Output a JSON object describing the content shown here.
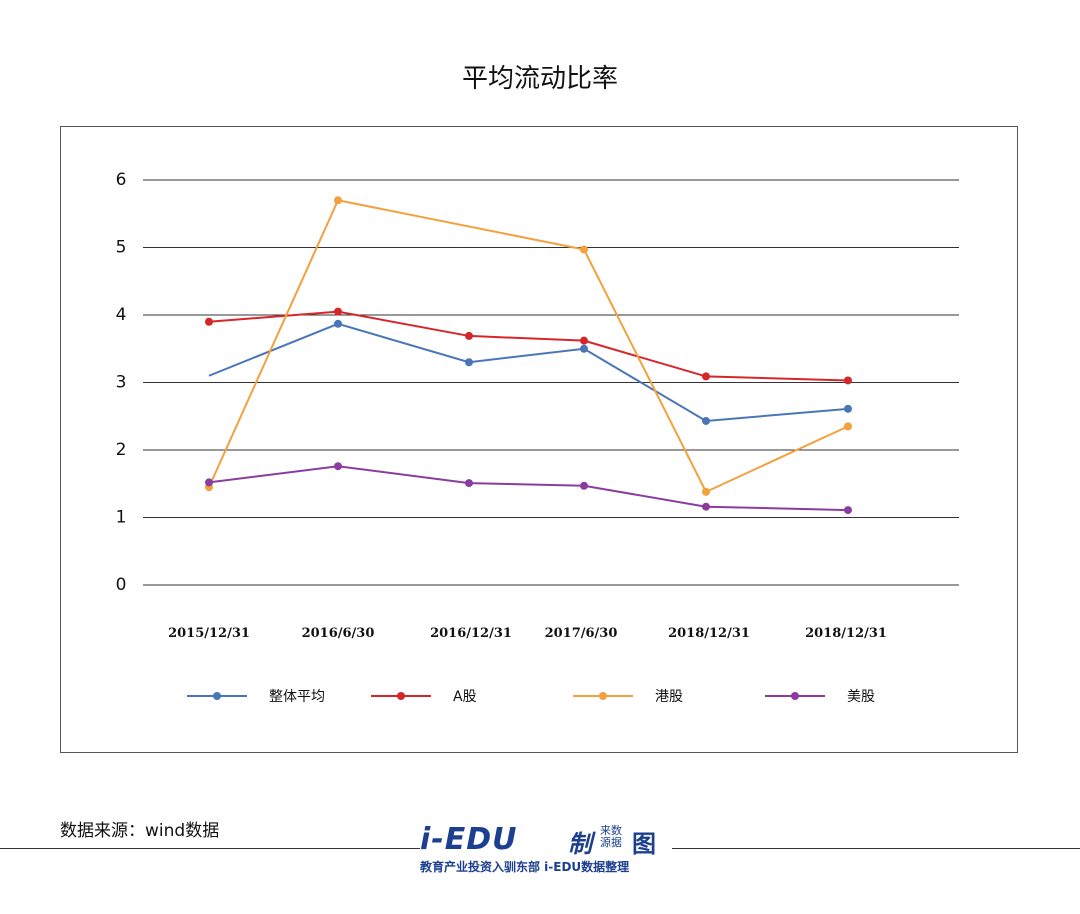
{
  "chart_data": {
    "type": "line",
    "title": "平均流动比率",
    "categories": [
      "2015/12/31",
      "2016/6/30",
      "2016/12/31",
      "2017/6/30",
      "2018/12/31",
      "2018/12/31"
    ],
    "ylim": [
      0,
      6
    ],
    "yticks": [
      "0",
      "1",
      "2",
      "3",
      "4",
      "5",
      "6"
    ],
    "grid": true,
    "legend_position": "bottom",
    "series": [
      {
        "name": "整体平均",
        "color": "#4a76b8",
        "values": [
          3.1,
          3.87,
          3.3,
          3.5,
          2.43,
          2.61
        ]
      },
      {
        "name": "A股",
        "color": "#d7262a",
        "values": [
          3.9,
          4.05,
          3.69,
          3.62,
          3.09,
          3.03
        ]
      },
      {
        "name": "港股",
        "color": "#f3a03d",
        "values": [
          1.45,
          5.7,
          null,
          4.97,
          1.38,
          2.35
        ]
      },
      {
        "name": "美股",
        "color": "#8a3d9e",
        "values": [
          1.52,
          1.76,
          1.51,
          1.47,
          1.16,
          1.11
        ]
      }
    ]
  },
  "footer": {
    "source_note": "数据来源：wind数据",
    "logo_main": "i-EDU",
    "logo_zhi": "制",
    "logo_laiyuan": "来数源据",
    "logo_tu": "图",
    "logo_sub": "教育产业投资入驯东部 i-EDU数据整理"
  }
}
